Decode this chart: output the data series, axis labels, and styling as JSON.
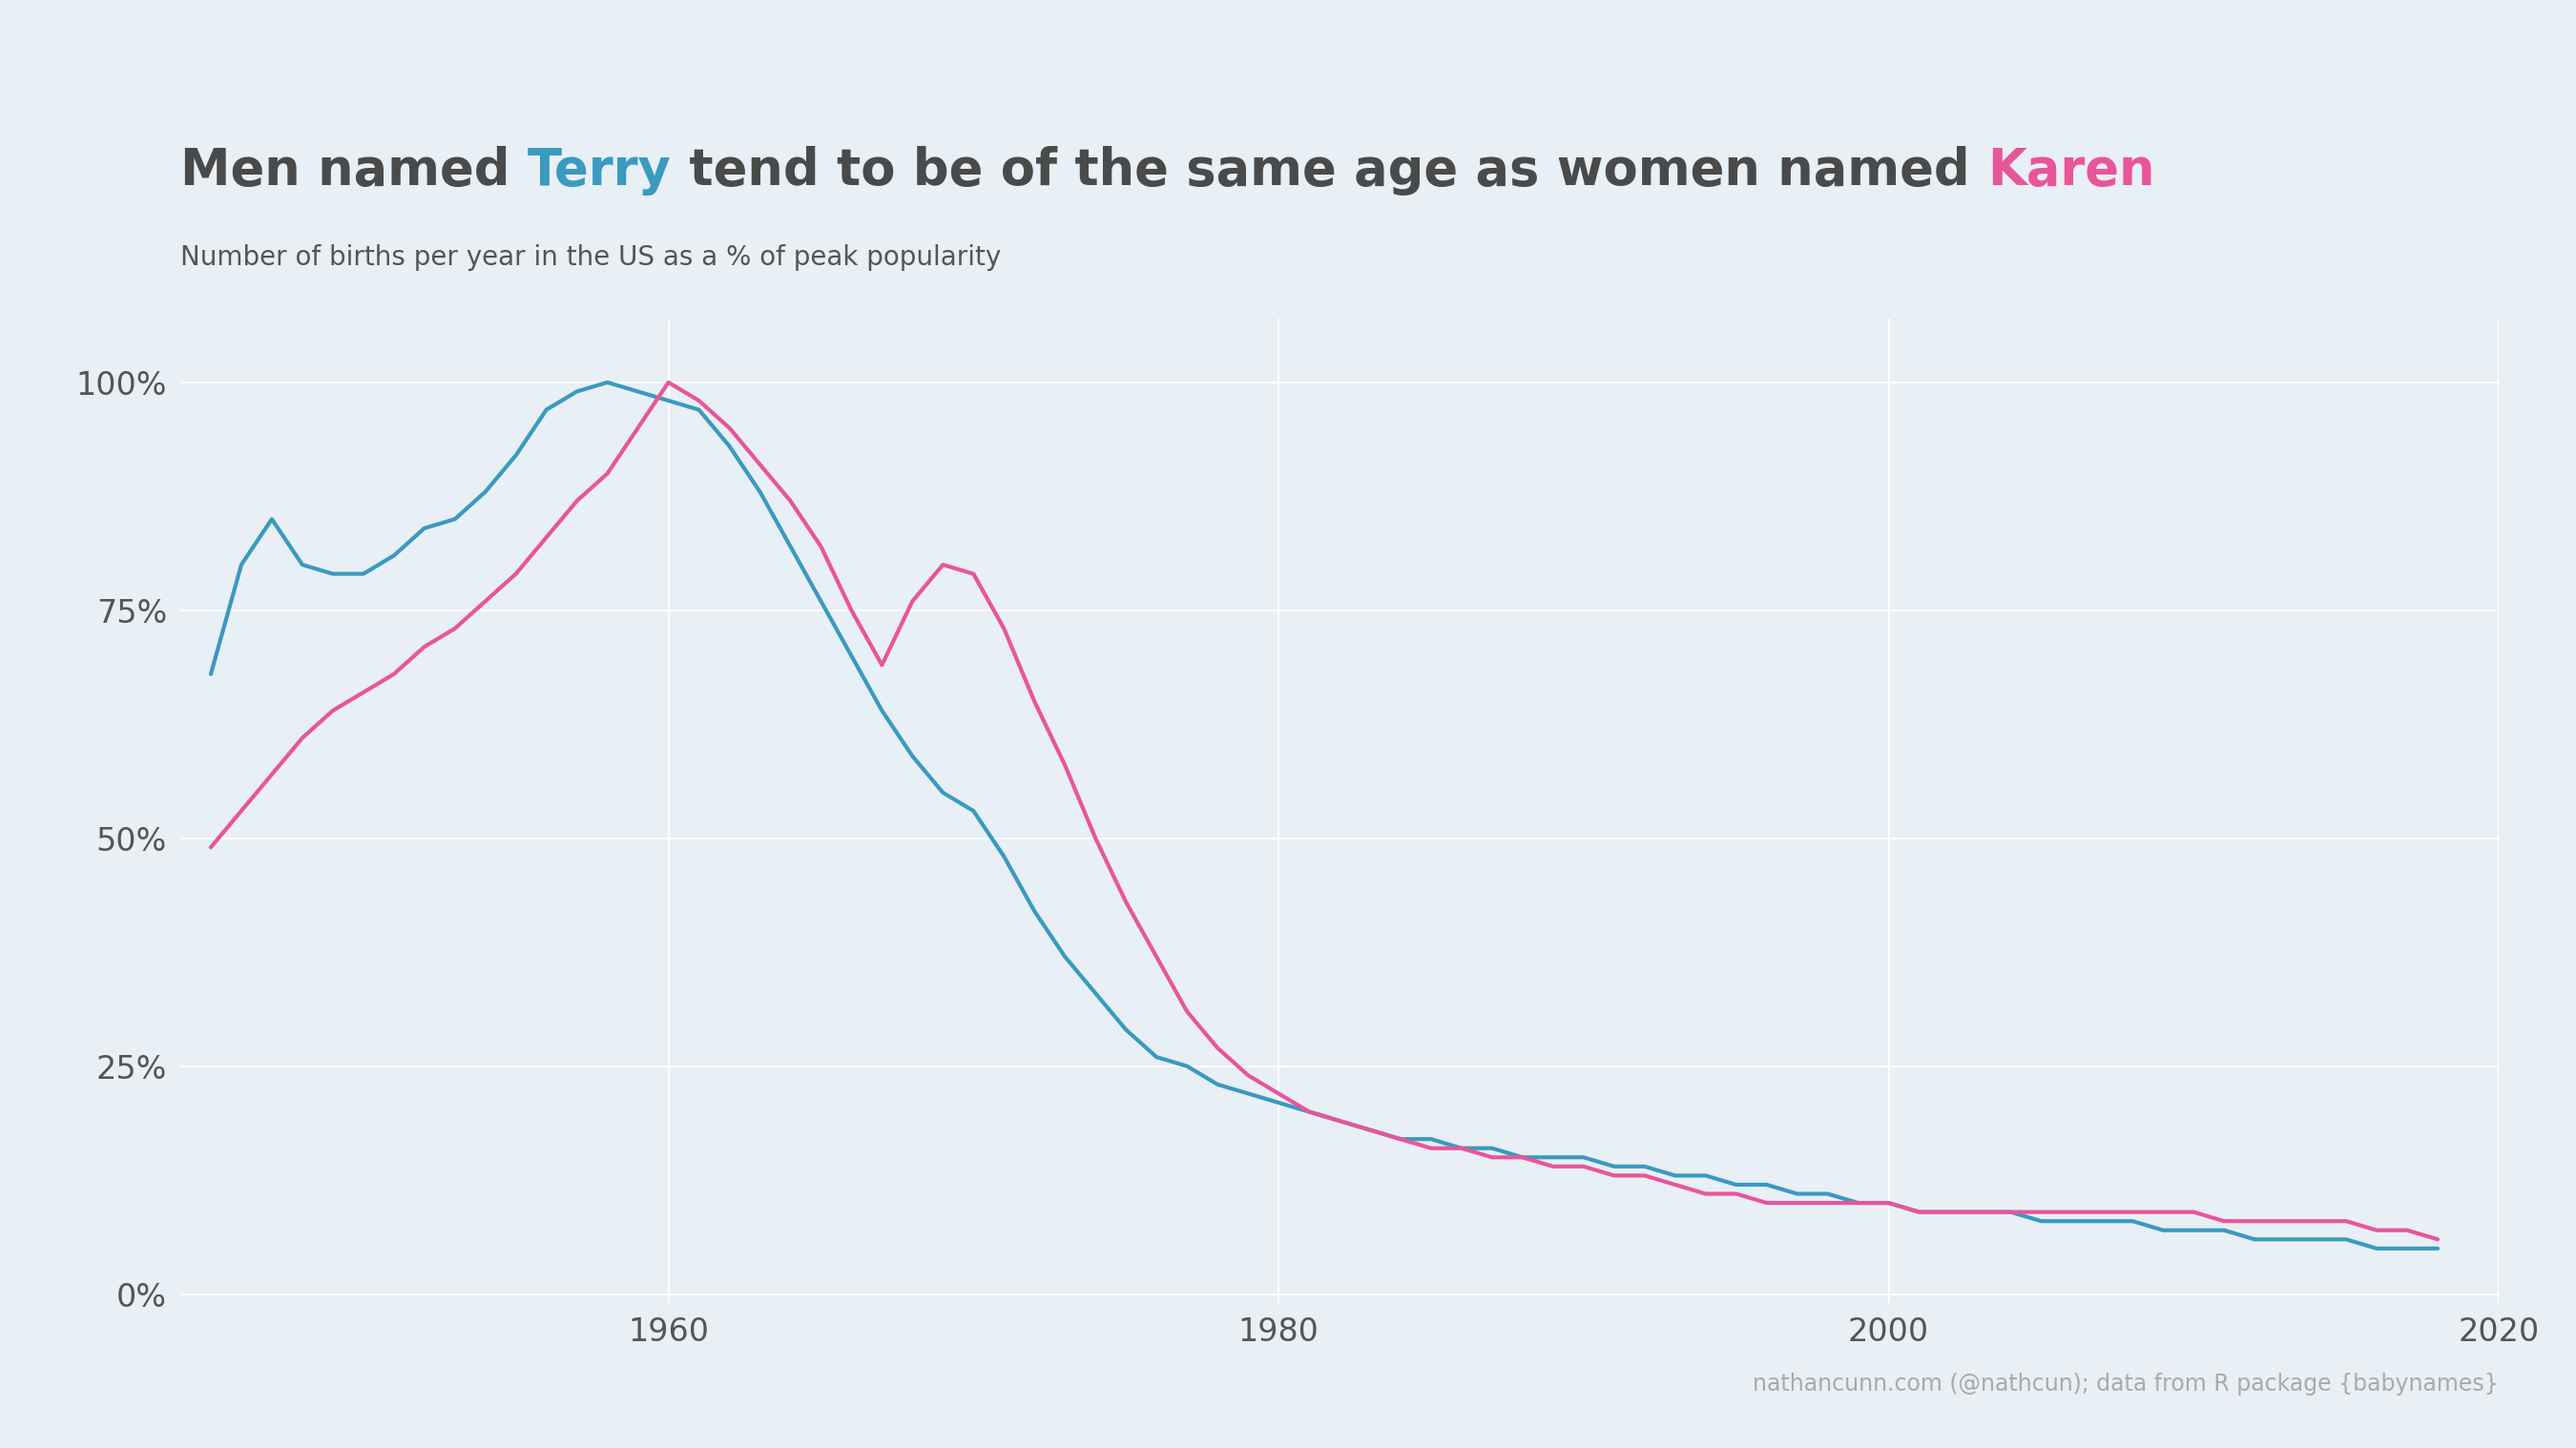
{
  "title_parts": [
    {
      "text": "Men named ",
      "color": "#4a4a4a"
    },
    {
      "text": "Terry",
      "color": "#3a9abf"
    },
    {
      "text": " tend to be of the same age as women named ",
      "color": "#4a4a4a"
    },
    {
      "text": "Karen",
      "color": "#e8559a"
    }
  ],
  "subtitle": "Number of births per year in the US as a % of peak popularity",
  "caption": "nathancunn.com (@nathcun); data from R package {babynames}",
  "background_color": "#e8eff5",
  "terry_color": "#3a9abf",
  "karen_color": "#e8559a",
  "xlim": [
    1944,
    2019
  ],
  "ylim": [
    -0.01,
    1.07
  ],
  "xticks": [
    1960,
    1980,
    2000,
    2020
  ],
  "yticks": [
    0.0,
    0.25,
    0.5,
    0.75,
    1.0
  ],
  "title_fontsize": 38,
  "subtitle_fontsize": 20,
  "caption_fontsize": 17,
  "tick_fontsize": 24,
  "line_width": 3.0,
  "terry_years": [
    1945,
    1946,
    1947,
    1948,
    1949,
    1950,
    1951,
    1952,
    1953,
    1954,
    1955,
    1956,
    1957,
    1958,
    1959,
    1960,
    1961,
    1962,
    1963,
    1964,
    1965,
    1966,
    1967,
    1968,
    1969,
    1970,
    1971,
    1972,
    1973,
    1974,
    1975,
    1976,
    1977,
    1978,
    1979,
    1980,
    1981,
    1982,
    1983,
    1984,
    1985,
    1986,
    1987,
    1988,
    1989,
    1990,
    1991,
    1992,
    1993,
    1994,
    1995,
    1996,
    1997,
    1998,
    1999,
    2000,
    2001,
    2002,
    2003,
    2004,
    2005,
    2006,
    2007,
    2008,
    2009,
    2010,
    2011,
    2012,
    2013,
    2014,
    2015,
    2016,
    2017,
    2018
  ],
  "terry_values": [
    0.68,
    0.8,
    0.85,
    0.8,
    0.79,
    0.79,
    0.81,
    0.84,
    0.85,
    0.88,
    0.92,
    0.97,
    0.99,
    1.0,
    0.99,
    0.98,
    0.97,
    0.93,
    0.88,
    0.82,
    0.76,
    0.7,
    0.64,
    0.59,
    0.55,
    0.53,
    0.48,
    0.42,
    0.37,
    0.33,
    0.29,
    0.26,
    0.25,
    0.23,
    0.22,
    0.21,
    0.2,
    0.19,
    0.18,
    0.17,
    0.17,
    0.16,
    0.16,
    0.15,
    0.15,
    0.15,
    0.14,
    0.14,
    0.13,
    0.13,
    0.12,
    0.12,
    0.11,
    0.11,
    0.1,
    0.1,
    0.09,
    0.09,
    0.09,
    0.09,
    0.08,
    0.08,
    0.08,
    0.08,
    0.07,
    0.07,
    0.07,
    0.06,
    0.06,
    0.06,
    0.06,
    0.05,
    0.05,
    0.05
  ],
  "karen_years": [
    1945,
    1946,
    1947,
    1948,
    1949,
    1950,
    1951,
    1952,
    1953,
    1954,
    1955,
    1956,
    1957,
    1958,
    1959,
    1960,
    1961,
    1962,
    1963,
    1964,
    1965,
    1966,
    1967,
    1968,
    1969,
    1970,
    1971,
    1972,
    1973,
    1974,
    1975,
    1976,
    1977,
    1978,
    1979,
    1980,
    1981,
    1982,
    1983,
    1984,
    1985,
    1986,
    1987,
    1988,
    1989,
    1990,
    1991,
    1992,
    1993,
    1994,
    1995,
    1996,
    1997,
    1998,
    1999,
    2000,
    2001,
    2002,
    2003,
    2004,
    2005,
    2006,
    2007,
    2008,
    2009,
    2010,
    2011,
    2012,
    2013,
    2014,
    2015,
    2016,
    2017,
    2018
  ],
  "karen_values": [
    0.49,
    0.53,
    0.57,
    0.61,
    0.64,
    0.66,
    0.68,
    0.71,
    0.73,
    0.76,
    0.79,
    0.83,
    0.87,
    0.9,
    0.95,
    1.0,
    0.98,
    0.95,
    0.91,
    0.87,
    0.82,
    0.75,
    0.69,
    0.76,
    0.8,
    0.79,
    0.73,
    0.65,
    0.58,
    0.5,
    0.43,
    0.37,
    0.31,
    0.27,
    0.24,
    0.22,
    0.2,
    0.19,
    0.18,
    0.17,
    0.16,
    0.16,
    0.15,
    0.15,
    0.14,
    0.14,
    0.13,
    0.13,
    0.12,
    0.11,
    0.11,
    0.1,
    0.1,
    0.1,
    0.1,
    0.1,
    0.09,
    0.09,
    0.09,
    0.09,
    0.09,
    0.09,
    0.09,
    0.09,
    0.09,
    0.09,
    0.08,
    0.08,
    0.08,
    0.08,
    0.08,
    0.07,
    0.07,
    0.06
  ]
}
